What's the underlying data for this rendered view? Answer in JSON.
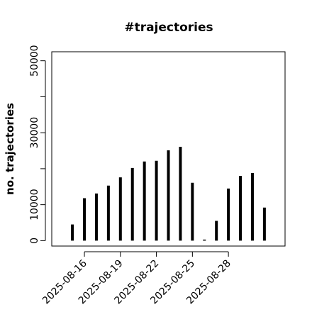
{
  "chart_data": {
    "type": "bar",
    "title": "#trajectories",
    "y_label": "no. trajectories",
    "categories": [
      null,
      "2025-08-16",
      null,
      null,
      "2025-08-19",
      null,
      null,
      "2025-08-22",
      null,
      null,
      "2025-08-25",
      null,
      null,
      "2025-08-28",
      null,
      null,
      null
    ],
    "values": [
      4500,
      11800,
      13100,
      15300,
      17600,
      20200,
      22000,
      22200,
      25100,
      26100,
      16100,
      300,
      5500,
      14500,
      18000,
      18800,
      9200
    ],
    "color": "#000000",
    "ylim": [
      -1500,
      52500
    ],
    "yticks": [
      0,
      10000,
      {
        "value": 20000,
        "label": null
      },
      30000,
      {
        "value": 40000,
        "label": null
      },
      50000
    ]
  }
}
